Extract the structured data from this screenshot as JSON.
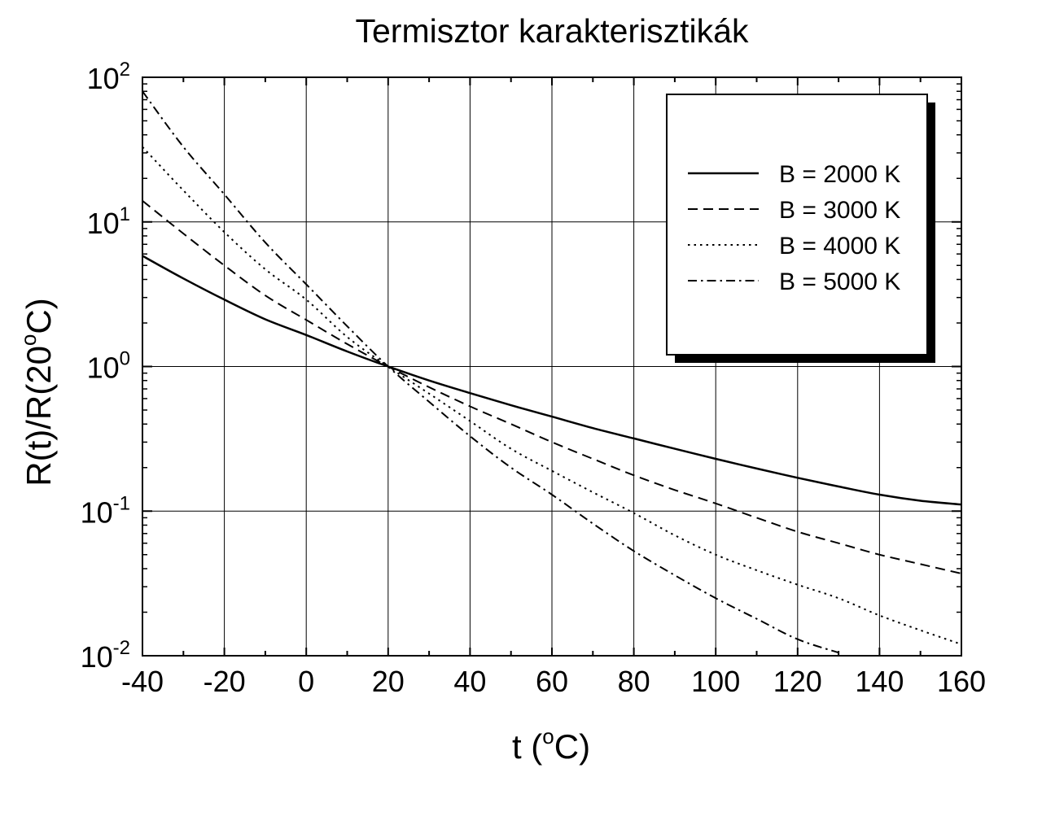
{
  "chart_data": {
    "type": "line",
    "title": "Termisztor karakterisztikák",
    "xlabel": "t (",
    "xlabel_sup": "o",
    "xlabel_end": "C)",
    "ylabel": "R(t)/R(20",
    "ylabel_sup": "o",
    "ylabel_end": "C)",
    "x_log": false,
    "y_log": true,
    "xlim": [
      -40,
      160
    ],
    "ylim_exp": [
      -2,
      2
    ],
    "xticks": [
      "-40",
      "-20",
      "0",
      "20",
      "40",
      "60",
      "80",
      "100",
      "120",
      "140",
      "160"
    ],
    "yticks": [
      {
        "base": "10",
        "exp": "-2"
      },
      {
        "base": "10",
        "exp": "-1"
      },
      {
        "base": "10",
        "exp": "0"
      },
      {
        "base": "10",
        "exp": "1"
      },
      {
        "base": "10",
        "exp": "2"
      }
    ],
    "grid": true,
    "legend_position": "top-right",
    "x": [
      -40,
      -30,
      -20,
      -10,
      0,
      10,
      20,
      30,
      40,
      50,
      60,
      70,
      80,
      90,
      100,
      110,
      120,
      130,
      140,
      150,
      160
    ],
    "series": [
      {
        "name": "B = 2000 K",
        "style": "solid",
        "values": [
          5.82,
          4.06,
          2.9,
          2.12,
          1.65,
          1.27,
          1.0,
          0.8,
          0.655,
          0.54,
          0.45,
          0.375,
          0.318,
          0.27,
          0.23,
          0.197,
          0.17,
          0.148,
          0.13,
          0.118,
          0.111
        ]
      },
      {
        "name": "B = 3000 K",
        "style": "dashed",
        "values": [
          14.0,
          8.3,
          5.0,
          3.1,
          2.1,
          1.43,
          1.0,
          0.72,
          0.53,
          0.4,
          0.3,
          0.23,
          0.177,
          0.14,
          0.113,
          0.09,
          0.072,
          0.06,
          0.05,
          0.043,
          0.037
        ]
      },
      {
        "name": "B = 4000 K",
        "style": "dotted",
        "values": [
          33.0,
          16.5,
          8.5,
          4.7,
          2.9,
          1.6,
          1.0,
          0.65,
          0.42,
          0.27,
          0.19,
          0.135,
          0.097,
          0.068,
          0.05,
          0.039,
          0.031,
          0.025,
          0.019,
          0.015,
          0.012
        ]
      },
      {
        "name": "B = 5000 K",
        "style": "dashdot",
        "values": [
          80.0,
          33.0,
          15.5,
          7.2,
          3.7,
          1.9,
          1.0,
          0.57,
          0.33,
          0.2,
          0.13,
          0.082,
          0.053,
          0.036,
          0.025,
          0.018,
          0.013,
          0.0105,
          null,
          null,
          null
        ]
      }
    ]
  }
}
